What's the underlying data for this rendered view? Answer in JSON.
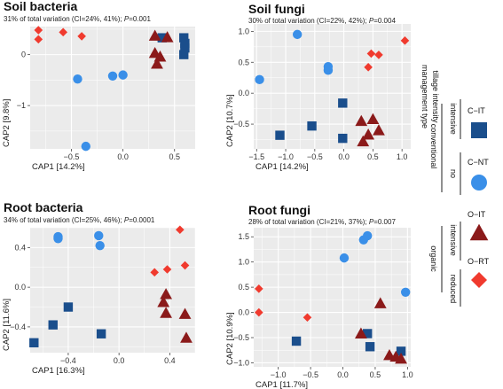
{
  "colors": {
    "C-IT": "#1a4e8c",
    "C-NT": "#3a8fe8",
    "O-IT": "#8b1a1a",
    "O-RT": "#f03a2e",
    "panel_bg": "#ebebeb",
    "grid": "#ffffff"
  },
  "legend": {
    "heading_1": "management type",
    "heading_2": "tillage intensity",
    "groups": [
      {
        "name": "conventional",
        "levels": [
          {
            "name": "intensive",
            "code": "C−IT",
            "key": "C-IT",
            "shape": "square"
          },
          {
            "name": "no",
            "code": "C−NT",
            "key": "C-NT",
            "shape": "circle"
          }
        ]
      },
      {
        "name": "organic",
        "levels": [
          {
            "name": "intensive",
            "code": "O−IT",
            "key": "O-IT",
            "shape": "triangle"
          },
          {
            "name": "reduced",
            "code": "O−RT",
            "key": "O-RT",
            "shape": "diamond"
          }
        ]
      }
    ]
  },
  "chart_data": [
    {
      "type": "scatter",
      "title": "Soil bacteria",
      "subtitle": "31% of total variation (CI=24%, 41%); P=0.001",
      "subtitle_pre": "31% of total variation (CI=24%, 41%); ",
      "p_value": "0.001",
      "xlabel": "CAP1  [14.2%]",
      "ylabel": "CAP2  [9.8%]",
      "xlim": [
        -0.9,
        0.7
      ],
      "ylim": [
        -1.85,
        0.55
      ],
      "xticks": [
        -0.5,
        0.0,
        0.5
      ],
      "xticklabels": [
        "−0.5",
        "0.0",
        "0.5"
      ],
      "yticks": [
        -1,
        0
      ],
      "yticklabels": [
        "−1",
        "0"
      ],
      "series": [
        {
          "name": "C-IT",
          "points": [
            [
              0.38,
              0.33
            ],
            [
              0.59,
              0.33
            ],
            [
              0.6,
              0.22
            ],
            [
              0.6,
              0.13
            ],
            [
              0.59,
              0.0
            ]
          ]
        },
        {
          "name": "C-NT",
          "points": [
            [
              -0.44,
              -0.48
            ],
            [
              -0.1,
              -0.42
            ],
            [
              0.0,
              -0.4
            ],
            [
              -0.36,
              -1.8
            ]
          ]
        },
        {
          "name": "O-IT",
          "points": [
            [
              0.31,
              0.37
            ],
            [
              0.43,
              0.34
            ],
            [
              0.31,
              0.03
            ],
            [
              0.36,
              -0.04
            ],
            [
              0.33,
              -0.18
            ]
          ]
        },
        {
          "name": "O-RT",
          "points": [
            [
              -0.82,
              0.48
            ],
            [
              -0.58,
              0.44
            ],
            [
              -0.82,
              0.3
            ],
            [
              -0.4,
              0.36
            ]
          ]
        }
      ]
    },
    {
      "type": "scatter",
      "title": "Soil fungi",
      "subtitle": "30% of total variation (CI=22%, 42%); P=0.004",
      "subtitle_pre": "30% of total variation (CI=22%, 42%); ",
      "p_value": "0.004",
      "xlabel": "CAP1  [14.2%]",
      "ylabel": "CAP2  [10.7%]",
      "xlim": [
        -1.55,
        1.15
      ],
      "ylim": [
        -0.9,
        1.12
      ],
      "xticks": [
        -1.5,
        -1.0,
        -0.5,
        0.0,
        0.5,
        1.0
      ],
      "xticklabels": [
        "−1.5",
        "−1.0",
        "−0.5",
        "0.0",
        "0.5",
        "1.0"
      ],
      "yticks": [
        -0.5,
        0.0,
        0.5,
        1.0
      ],
      "yticklabels": [
        "−0.5",
        "0.0",
        "0.5",
        "1.0"
      ],
      "series": [
        {
          "name": "C-IT",
          "points": [
            [
              -1.1,
              -0.68
            ],
            [
              -0.55,
              -0.53
            ],
            [
              -0.02,
              -0.16
            ],
            [
              -0.02,
              -0.73
            ]
          ]
        },
        {
          "name": "C-NT",
          "points": [
            [
              -1.45,
              0.22
            ],
            [
              -0.8,
              0.95
            ],
            [
              -0.27,
              0.43
            ],
            [
              -0.27,
              0.37
            ]
          ]
        },
        {
          "name": "O-IT",
          "points": [
            [
              0.3,
              -0.45
            ],
            [
              0.5,
              -0.42
            ],
            [
              0.6,
              -0.6
            ],
            [
              0.42,
              -0.67
            ],
            [
              0.33,
              -0.78
            ]
          ]
        },
        {
          "name": "O-RT",
          "points": [
            [
              0.47,
              0.64
            ],
            [
              0.6,
              0.62
            ],
            [
              0.42,
              0.42
            ],
            [
              1.05,
              0.85
            ]
          ]
        }
      ]
    },
    {
      "type": "scatter",
      "title": "Root bacteria",
      "subtitle": "34% of total variation (CI=25%, 46%); P=0.0001",
      "subtitle_pre": "34% of total variation (CI=25%, 46%); ",
      "p_value": "0.0001",
      "xlabel": "CAP1  [16.3%]",
      "ylabel": "CAP2  [11.6%]",
      "xlim": [
        -0.7,
        0.6
      ],
      "ylim": [
        -0.66,
        0.6
      ],
      "xticks": [
        -0.4,
        0.0,
        0.4
      ],
      "xticklabels": [
        "−0.4",
        "0.0",
        "0.4"
      ],
      "yticks": [
        -0.4,
        0.0,
        0.4
      ],
      "yticklabels": [
        "−0.4",
        "0.0",
        "0.4"
      ],
      "series": [
        {
          "name": "C-IT",
          "points": [
            [
              -0.4,
              -0.2
            ],
            [
              -0.52,
              -0.38
            ],
            [
              -0.14,
              -0.47
            ],
            [
              -0.67,
              -0.56
            ]
          ]
        },
        {
          "name": "C-NT",
          "points": [
            [
              -0.48,
              0.51
            ],
            [
              -0.48,
              0.49
            ],
            [
              -0.16,
              0.52
            ],
            [
              -0.15,
              0.42
            ]
          ]
        },
        {
          "name": "O-IT",
          "points": [
            [
              0.37,
              -0.07
            ],
            [
              0.35,
              -0.15
            ],
            [
              0.37,
              -0.26
            ],
            [
              0.52,
              -0.27
            ],
            [
              0.53,
              -0.51
            ]
          ]
        },
        {
          "name": "O-RT",
          "points": [
            [
              0.48,
              0.58
            ],
            [
              0.52,
              0.22
            ],
            [
              0.38,
              0.18
            ],
            [
              0.28,
              0.15
            ]
          ]
        }
      ]
    },
    {
      "type": "scatter",
      "title": "Root fungi",
      "subtitle": "28% of total variation (CI=21%, 37%); P=0.007",
      "subtitle_pre": "28% of total variation (CI=21%, 37%); ",
      "p_value": "0.007",
      "xlabel": "CAP1  [11.7%]",
      "ylabel": "CAP2  [10.9%]",
      "xlim": [
        -1.38,
        1.05
      ],
      "ylim": [
        -1.08,
        1.68
      ],
      "xticks": [
        -1.0,
        -0.5,
        0.0,
        0.5,
        1.0
      ],
      "xticklabels": [
        "−1.0",
        "−0.5",
        "0.0",
        "0.5",
        "1.0"
      ],
      "yticks": [
        -1.0,
        -0.5,
        0.0,
        0.5,
        1.0,
        1.5
      ],
      "yticklabels": [
        "−1.0",
        "−0.5",
        "0.0",
        "0.5",
        "1.0",
        "1.5"
      ],
      "series": [
        {
          "name": "C-IT",
          "points": [
            [
              -0.72,
              -0.57
            ],
            [
              0.38,
              -0.42
            ],
            [
              0.42,
              -0.68
            ],
            [
              0.9,
              -0.77
            ]
          ]
        },
        {
          "name": "C-NT",
          "points": [
            [
              0.32,
              1.44
            ],
            [
              0.38,
              1.52
            ],
            [
              0.02,
              1.08
            ],
            [
              0.97,
              0.4
            ]
          ]
        },
        {
          "name": "O-IT",
          "points": [
            [
              0.28,
              -0.42
            ],
            [
              0.58,
              0.18
            ],
            [
              0.72,
              -0.85
            ],
            [
              0.82,
              -0.88
            ],
            [
              0.9,
              -0.92
            ]
          ]
        },
        {
          "name": "O-RT",
          "points": [
            [
              -1.3,
              0.47
            ],
            [
              -1.3,
              0.0
            ],
            [
              -0.55,
              -0.1
            ]
          ]
        }
      ]
    }
  ]
}
